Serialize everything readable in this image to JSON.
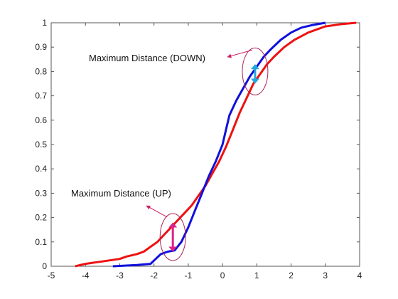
{
  "chart_data": {
    "type": "line",
    "title": "",
    "xlabel": "",
    "ylabel": "",
    "xlim": [
      -5,
      4
    ],
    "ylim": [
      0,
      1
    ],
    "x_ticks": [
      "-5",
      "-4",
      "-3",
      "-2",
      "-1",
      "0",
      "1",
      "2",
      "3",
      "4"
    ],
    "y_ticks": [
      "0",
      "0.1",
      "0.2",
      "0.3",
      "0.4",
      "0.5",
      "0.6",
      "0.7",
      "0.8",
      "0.9",
      "1"
    ],
    "grid": false,
    "legend": "none",
    "series": [
      {
        "color": "#ee1111",
        "points": [
          [
            -4.3,
            0.0
          ],
          [
            -4.0,
            0.01
          ],
          [
            -3.5,
            0.02
          ],
          [
            -3.0,
            0.03
          ],
          [
            -2.8,
            0.04
          ],
          [
            -2.5,
            0.05
          ],
          [
            -2.3,
            0.06
          ],
          [
            -2.1,
            0.08
          ],
          [
            -1.9,
            0.1
          ],
          [
            -1.7,
            0.13
          ],
          [
            -1.5,
            0.16
          ],
          [
            -1.3,
            0.19
          ],
          [
            -1.1,
            0.22
          ],
          [
            -0.9,
            0.25
          ],
          [
            -0.7,
            0.29
          ],
          [
            -0.5,
            0.33
          ],
          [
            -0.3,
            0.38
          ],
          [
            -0.1,
            0.43
          ],
          [
            0.1,
            0.49
          ],
          [
            0.3,
            0.56
          ],
          [
            0.5,
            0.63
          ],
          [
            0.7,
            0.69
          ],
          [
            0.9,
            0.75
          ],
          [
            1.1,
            0.79
          ],
          [
            1.3,
            0.83
          ],
          [
            1.5,
            0.86
          ],
          [
            1.8,
            0.9
          ],
          [
            2.1,
            0.93
          ],
          [
            2.5,
            0.96
          ],
          [
            3.0,
            0.985
          ],
          [
            3.5,
            0.995
          ],
          [
            3.9,
            1.0
          ]
        ]
      },
      {
        "color": "#1010dd",
        "points": [
          [
            -3.2,
            0.0
          ],
          [
            -2.5,
            0.005
          ],
          [
            -2.1,
            0.01
          ],
          [
            -1.95,
            0.03
          ],
          [
            -1.8,
            0.05
          ],
          [
            -1.6,
            0.06
          ],
          [
            -1.4,
            0.065
          ],
          [
            -1.2,
            0.1
          ],
          [
            -1.0,
            0.16
          ],
          [
            -0.8,
            0.23
          ],
          [
            -0.6,
            0.3
          ],
          [
            -0.4,
            0.37
          ],
          [
            -0.2,
            0.43
          ],
          [
            0.0,
            0.5
          ],
          [
            0.1,
            0.56
          ],
          [
            0.2,
            0.62
          ],
          [
            0.4,
            0.68
          ],
          [
            0.6,
            0.73
          ],
          [
            0.8,
            0.78
          ],
          [
            1.0,
            0.82
          ],
          [
            1.2,
            0.86
          ],
          [
            1.4,
            0.89
          ],
          [
            1.7,
            0.93
          ],
          [
            2.0,
            0.96
          ],
          [
            2.3,
            0.98
          ],
          [
            2.6,
            0.99
          ],
          [
            3.0,
            1.0
          ]
        ]
      }
    ],
    "annotations": [
      {
        "text": "Maximum  Distance (DOWN)",
        "color": "#cc2266",
        "ellipse_center": [
          0.95,
          0.8
        ],
        "arrow_color": "#22aadd",
        "arrow_x": 0.95,
        "arrow_y": [
          0.75,
          0.83
        ]
      },
      {
        "text": "Maximum  Distance (UP)",
        "color": "#cc2266",
        "ellipse_center": [
          -1.45,
          0.12
        ],
        "arrow_color": "#dd2288",
        "arrow_x": -1.45,
        "arrow_y": [
          0.06,
          0.18
        ]
      }
    ]
  }
}
